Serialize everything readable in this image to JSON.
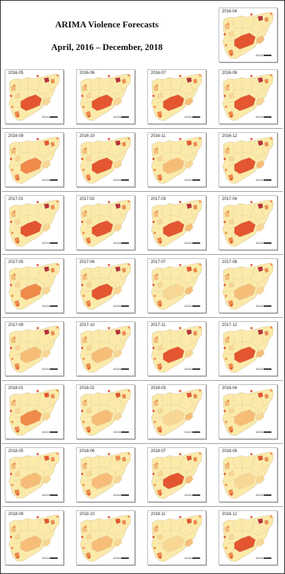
{
  "title": {
    "line1": "ARIMA Violence Forecasts",
    "line2": "April, 2016 – December, 2018"
  },
  "colors": {
    "light": "#fbeaa9",
    "light2": "#f8d794",
    "mid": "#f6bd78",
    "orange": "#f08a4a",
    "red": "#e3562f",
    "dark": "#b8323a",
    "border": "#d6c7a4"
  },
  "panels": [
    {
      "label": "2016-04",
      "desert": "red",
      "n": "dark",
      "e": "mid"
    },
    {
      "label": "2016-05",
      "desert": "red",
      "n": "dark",
      "e": "light2"
    },
    {
      "label": "2016-06",
      "desert": "red",
      "n": "dark",
      "e": "light2"
    },
    {
      "label": "2016-07",
      "desert": "red",
      "n": "dark",
      "e": "mid"
    },
    {
      "label": "2016-08",
      "desert": "red",
      "n": "dark",
      "e": "light2"
    },
    {
      "label": "2016-09",
      "desert": "orange",
      "n": "red",
      "e": "light2"
    },
    {
      "label": "2016-10",
      "desert": "red",
      "n": "dark",
      "e": "light2"
    },
    {
      "label": "2016-11",
      "desert": "mid",
      "n": "red",
      "e": "light2"
    },
    {
      "label": "2016-12",
      "desert": "red",
      "n": "dark",
      "e": "mid"
    },
    {
      "label": "2017-01",
      "desert": "red",
      "n": "dark",
      "e": "light2"
    },
    {
      "label": "2017-02",
      "desert": "red",
      "n": "dark",
      "e": "light2"
    },
    {
      "label": "2017-03",
      "desert": "red",
      "n": "dark",
      "e": "mid"
    },
    {
      "label": "2017-04",
      "desert": "red",
      "n": "dark",
      "e": "light2"
    },
    {
      "label": "2017-05",
      "desert": "orange",
      "n": "dark",
      "e": "light2"
    },
    {
      "label": "2017-06",
      "desert": "red",
      "n": "dark",
      "e": "light2"
    },
    {
      "label": "2017-07",
      "desert": "light2",
      "n": "red",
      "e": "mid"
    },
    {
      "label": "2017-08",
      "desert": "mid",
      "n": "dark",
      "e": "light2"
    },
    {
      "label": "2017-09",
      "desert": "mid",
      "n": "dark",
      "e": "light2"
    },
    {
      "label": "2017-10",
      "desert": "mid",
      "n": "dark",
      "e": "light2"
    },
    {
      "label": "2017-11",
      "desert": "red",
      "n": "dark",
      "e": "light2"
    },
    {
      "label": "2017-12",
      "desert": "red",
      "n": "dark",
      "e": "mid"
    },
    {
      "label": "2018-01",
      "desert": "orange",
      "n": "red",
      "e": "light2"
    },
    {
      "label": "2018-02",
      "desert": "mid",
      "n": "red",
      "e": "light2"
    },
    {
      "label": "2018-03",
      "desert": "light2",
      "n": "red",
      "e": "mid"
    },
    {
      "label": "2018-04",
      "desert": "mid",
      "n": "red",
      "e": "light2"
    },
    {
      "label": "2018-05",
      "desert": "mid",
      "n": "red",
      "e": "light2"
    },
    {
      "label": "2018-06",
      "desert": "mid",
      "n": "orange",
      "e": "light2"
    },
    {
      "label": "2018-07",
      "desert": "red",
      "n": "red",
      "e": "mid"
    },
    {
      "label": "2018-08",
      "desert": "light2",
      "n": "red",
      "e": "light2"
    },
    {
      "label": "2018-09",
      "desert": "mid",
      "n": "red",
      "e": "light2"
    },
    {
      "label": "2018-10",
      "desert": "mid",
      "n": "red",
      "e": "light2"
    },
    {
      "label": "2018-11",
      "desert": "light2",
      "n": "red",
      "e": "mid"
    },
    {
      "label": "2018-12",
      "desert": "red",
      "n": "dark",
      "e": "light2"
    }
  ]
}
